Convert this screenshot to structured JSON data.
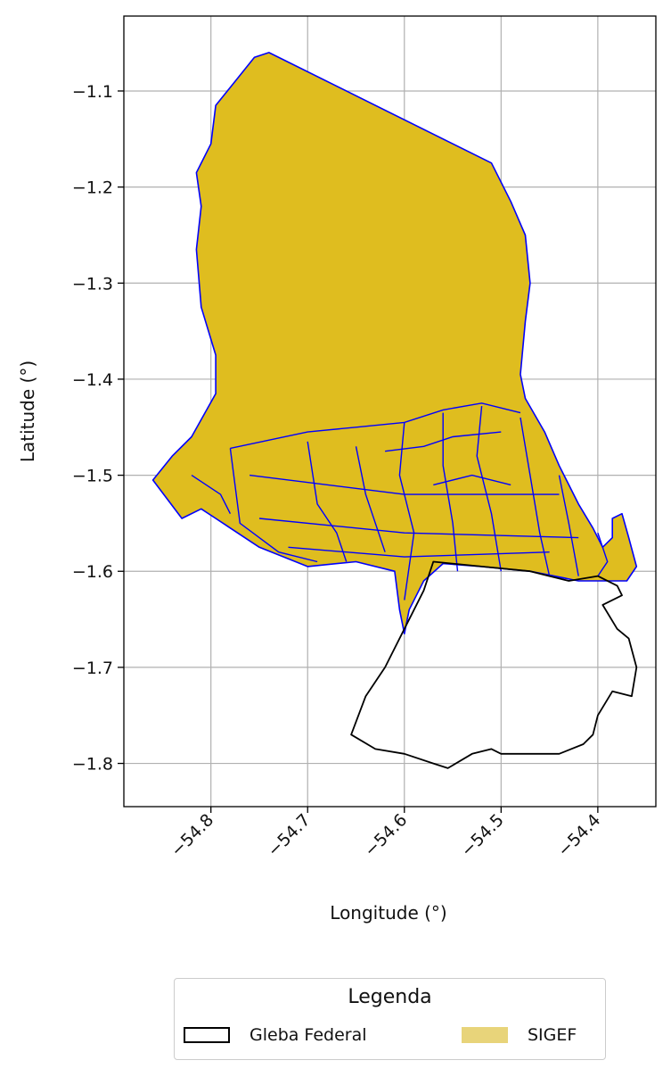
{
  "chart_data": {
    "type": "map",
    "xlabel": "Longitude (°)",
    "ylabel": "Latitude (°)",
    "xlim": [
      -54.89,
      -54.34
    ],
    "ylim": [
      -1.845,
      -1.022
    ],
    "x_ticks": [
      -54.8,
      -54.7,
      -54.6,
      -54.5,
      -54.4
    ],
    "x_tick_labels": [
      "−54.8",
      "−54.7",
      "−54.6",
      "−54.5",
      "−54.4"
    ],
    "y_ticks": [
      -1.1,
      -1.2,
      -1.3,
      -1.4,
      -1.5,
      -1.6,
      -1.7,
      -1.8
    ],
    "y_tick_labels": [
      "−1.1",
      "−1.2",
      "−1.3",
      "−1.4",
      "−1.5",
      "−1.6",
      "−1.7",
      "−1.8"
    ],
    "grid": true,
    "layers": [
      {
        "name": "SIGEF",
        "fill": "#dfbd1f",
        "edge": "#0000ff",
        "outline": [
          [
            -54.74,
            -1.06
          ],
          [
            -54.51,
            -1.175
          ],
          [
            -54.49,
            -1.215
          ],
          [
            -54.475,
            -1.25
          ],
          [
            -54.47,
            -1.3
          ],
          [
            -54.475,
            -1.34
          ],
          [
            -54.48,
            -1.395
          ],
          [
            -54.475,
            -1.42
          ],
          [
            -54.455,
            -1.455
          ],
          [
            -54.44,
            -1.49
          ],
          [
            -54.42,
            -1.53
          ],
          [
            -54.405,
            -1.555
          ],
          [
            -54.395,
            -1.575
          ],
          [
            -54.385,
            -1.565
          ],
          [
            -54.385,
            -1.545
          ],
          [
            -54.375,
            -1.54
          ],
          [
            -54.368,
            -1.565
          ],
          [
            -54.36,
            -1.595
          ],
          [
            -54.37,
            -1.61
          ],
          [
            -54.385,
            -1.61
          ],
          [
            -54.42,
            -1.61
          ],
          [
            -54.47,
            -1.6
          ],
          [
            -54.52,
            -1.595
          ],
          [
            -54.56,
            -1.592
          ],
          [
            -54.58,
            -1.61
          ],
          [
            -54.595,
            -1.64
          ],
          [
            -54.6,
            -1.665
          ],
          [
            -54.605,
            -1.64
          ],
          [
            -54.61,
            -1.6
          ],
          [
            -54.65,
            -1.59
          ],
          [
            -54.7,
            -1.595
          ],
          [
            -54.75,
            -1.575
          ],
          [
            -54.795,
            -1.545
          ],
          [
            -54.81,
            -1.535
          ],
          [
            -54.83,
            -1.545
          ],
          [
            -54.86,
            -1.505
          ],
          [
            -54.84,
            -1.48
          ],
          [
            -54.82,
            -1.46
          ],
          [
            -54.795,
            -1.415
          ],
          [
            -54.795,
            -1.375
          ],
          [
            -54.81,
            -1.325
          ],
          [
            -54.815,
            -1.265
          ],
          [
            -54.81,
            -1.22
          ],
          [
            -54.815,
            -1.185
          ],
          [
            -54.8,
            -1.155
          ],
          [
            -54.795,
            -1.115
          ],
          [
            -54.775,
            -1.09
          ],
          [
            -54.755,
            -1.065
          ],
          [
            -54.74,
            -1.06
          ]
        ],
        "parcel_boundaries": [
          [
            [
              -54.78,
              -1.472
            ],
            [
              -54.7,
              -1.455
            ],
            [
              -54.65,
              -1.45
            ],
            [
              -54.6,
              -1.445
            ],
            [
              -54.56,
              -1.432
            ],
            [
              -54.52,
              -1.425
            ],
            [
              -54.48,
              -1.435
            ]
          ],
          [
            [
              -54.78,
              -1.472
            ],
            [
              -54.77,
              -1.55
            ],
            [
              -54.73,
              -1.58
            ],
            [
              -54.69,
              -1.59
            ]
          ],
          [
            [
              -54.7,
              -1.465
            ],
            [
              -54.69,
              -1.53
            ],
            [
              -54.67,
              -1.56
            ],
            [
              -54.66,
              -1.59
            ]
          ],
          [
            [
              -54.65,
              -1.47
            ],
            [
              -54.64,
              -1.52
            ],
            [
              -54.62,
              -1.58
            ]
          ],
          [
            [
              -54.6,
              -1.445
            ],
            [
              -54.605,
              -1.5
            ],
            [
              -54.59,
              -1.56
            ],
            [
              -54.6,
              -1.63
            ]
          ],
          [
            [
              -54.56,
              -1.435
            ],
            [
              -54.56,
              -1.49
            ],
            [
              -54.55,
              -1.55
            ],
            [
              -54.545,
              -1.6
            ]
          ],
          [
            [
              -54.52,
              -1.428
            ],
            [
              -54.525,
              -1.48
            ],
            [
              -54.51,
              -1.54
            ],
            [
              -54.5,
              -1.6
            ]
          ],
          [
            [
              -54.48,
              -1.44
            ],
            [
              -54.47,
              -1.5
            ],
            [
              -54.46,
              -1.56
            ],
            [
              -54.45,
              -1.605
            ]
          ],
          [
            [
              -54.44,
              -1.5
            ],
            [
              -54.43,
              -1.55
            ],
            [
              -54.42,
              -1.605
            ]
          ],
          [
            [
              -54.76,
              -1.5
            ],
            [
              -54.6,
              -1.52
            ],
            [
              -54.44,
              -1.52
            ]
          ],
          [
            [
              -54.75,
              -1.545
            ],
            [
              -54.6,
              -1.56
            ],
            [
              -54.42,
              -1.565
            ]
          ],
          [
            [
              -54.72,
              -1.575
            ],
            [
              -54.6,
              -1.585
            ],
            [
              -54.45,
              -1.58
            ]
          ],
          [
            [
              -54.82,
              -1.5
            ],
            [
              -54.79,
              -1.52
            ],
            [
              -54.78,
              -1.54
            ]
          ],
          [
            [
              -54.62,
              -1.475
            ],
            [
              -54.58,
              -1.47
            ],
            [
              -54.55,
              -1.46
            ],
            [
              -54.5,
              -1.455
            ]
          ],
          [
            [
              -54.57,
              -1.51
            ],
            [
              -54.53,
              -1.5
            ],
            [
              -54.49,
              -1.51
            ]
          ],
          [
            [
              -54.4,
              -1.56
            ],
            [
              -54.39,
              -1.59
            ],
            [
              -54.4,
              -1.605
            ]
          ]
        ]
      },
      {
        "name": "Gleba Federal",
        "fill": "none",
        "edge": "#000000",
        "outline": [
          [
            -54.57,
            -1.59
          ],
          [
            -54.52,
            -1.595
          ],
          [
            -54.47,
            -1.6
          ],
          [
            -54.43,
            -1.61
          ],
          [
            -54.4,
            -1.605
          ],
          [
            -54.38,
            -1.615
          ],
          [
            -54.375,
            -1.625
          ],
          [
            -54.395,
            -1.635
          ],
          [
            -54.38,
            -1.66
          ],
          [
            -54.368,
            -1.67
          ],
          [
            -54.36,
            -1.7
          ],
          [
            -54.365,
            -1.73
          ],
          [
            -54.385,
            -1.725
          ],
          [
            -54.4,
            -1.75
          ],
          [
            -54.405,
            -1.77
          ],
          [
            -54.415,
            -1.78
          ],
          [
            -54.44,
            -1.79
          ],
          [
            -54.5,
            -1.79
          ],
          [
            -54.51,
            -1.785
          ],
          [
            -54.53,
            -1.79
          ],
          [
            -54.555,
            -1.805
          ],
          [
            -54.57,
            -1.8
          ],
          [
            -54.6,
            -1.79
          ],
          [
            -54.63,
            -1.785
          ],
          [
            -54.655,
            -1.77
          ],
          [
            -54.64,
            -1.73
          ],
          [
            -54.62,
            -1.7
          ],
          [
            -54.6,
            -1.66
          ],
          [
            -54.58,
            -1.62
          ],
          [
            -54.57,
            -1.59
          ]
        ]
      }
    ],
    "legend": {
      "title": "Legenda",
      "placement": "bottom-center",
      "items": [
        {
          "label": "Gleba Federal",
          "style": "outline",
          "color": "#000000"
        },
        {
          "label": "SIGEF",
          "style": "fill",
          "color": "#e8d47a"
        }
      ]
    }
  }
}
